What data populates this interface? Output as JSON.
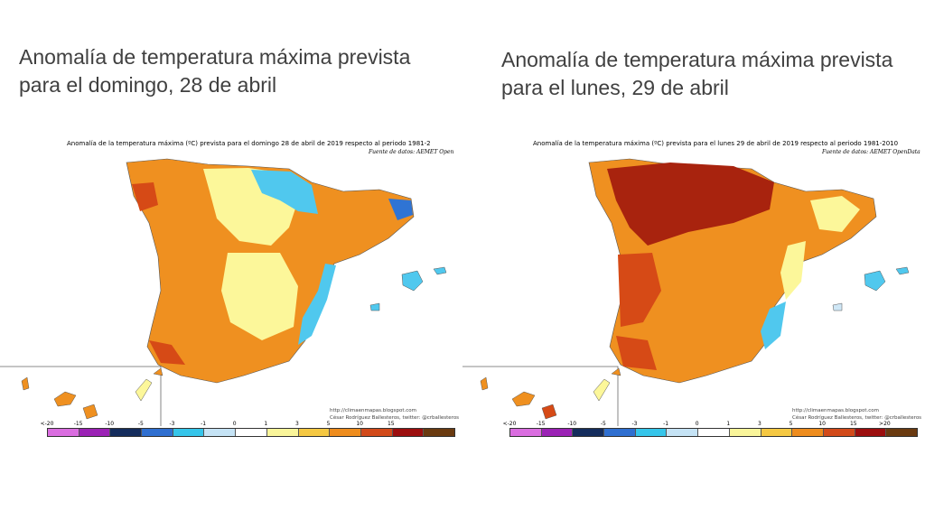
{
  "panels": [
    {
      "headline": "Anomalía de temperatura máxima prevista para el domingo, 28 de abril",
      "map_caption": "Anomalía de la temperatura máxima (ºC) prevista para el domingo 28 de abril de 2019 respecto al periodo 1981-2",
      "map_source": "Fuente de datos: AEMET Open",
      "credit_line1": "http://climaenmapas.blogspot.com",
      "credit_line2": "César Rodríguez Ballesteros, twitter: @crballesteros",
      "legend_ticks": [
        "<-20",
        "-15",
        "-10",
        "-5",
        "-3",
        "-1",
        "0",
        "1",
        "3",
        "5",
        "10",
        "15"
      ]
    },
    {
      "headline": "Anomalía de temperatura máxima prevista para el lunes, 29 de abril",
      "map_caption": "Anomalía de la temperatura máxima (ºC) prevista para el lunes 29 de abril de 2019 respecto al periodo 1981-2010",
      "map_source": "Fuente de datos: AEMET OpenData",
      "credit_line1": "http://climaenmapas.blogspot.com",
      "credit_line2": "César Rodríguez Ballesteros, twitter: @crballesteros",
      "legend_ticks": [
        "<-20",
        "-15",
        "-10",
        "-5",
        "-3",
        "-1",
        "0",
        "1",
        "3",
        "5",
        "10",
        "15",
        ">20"
      ]
    }
  ],
  "legend_colors": [
    "#da6de0",
    "#9b22b5",
    "#142c5c",
    "#2f6fd0",
    "#35c5ea",
    "#c5e3f5",
    "#ffffff",
    "#f9f59a",
    "#f5c842",
    "#ee8c1d",
    "#d24a1a",
    "#9c0e0e",
    "#6a3a10"
  ],
  "map_colors": {
    "neg_small": "#cfe7f6",
    "neg_mid": "#50c8ee",
    "neg_large": "#2f74d4",
    "pos_small": "#fcf79a",
    "pos_mid": "#f5c542",
    "pos_large": "#ef9020",
    "pos_xlarge": "#d64a16",
    "pos_xxlarge": "#a8230e"
  }
}
